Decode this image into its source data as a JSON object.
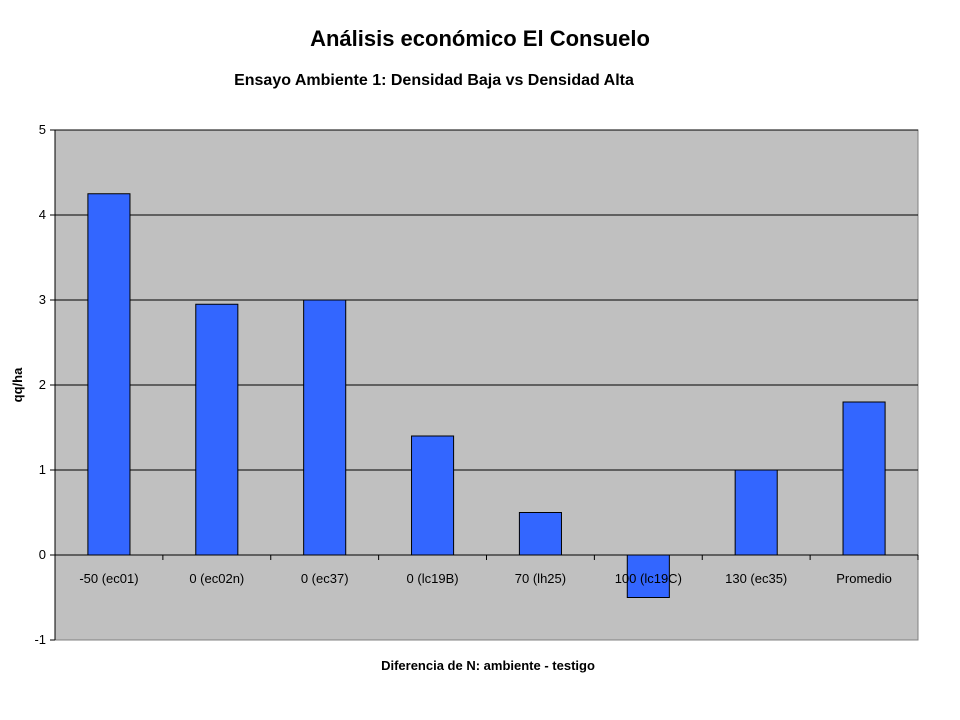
{
  "page": {
    "title": "Análisis económico El Consuelo"
  },
  "chart_data": {
    "type": "bar",
    "title": "Ensayo Ambiente 1: Densidad Baja vs Densidad Alta",
    "xlabel": "Diferencia de N: ambiente - testigo",
    "ylabel": "qq/ha",
    "categories": [
      "-50 (ec01)",
      "0 (ec02n)",
      "0 (ec37)",
      "0 (lc19B)",
      "70 (lh25)",
      "100 (lc19C)",
      "130 (ec35)",
      "Promedio"
    ],
    "series": [
      {
        "values": [
          4.25,
          2.95,
          3.0,
          1.4,
          0.5,
          -0.5,
          1.0,
          1.8
        ]
      }
    ],
    "ylim": [
      -1,
      5
    ],
    "yticks": [
      -1,
      0,
      1,
      2,
      3,
      4,
      5
    ],
    "grid": true,
    "legend": "none",
    "colors": {
      "bar": "#3366ff",
      "plot_background": "#c0c0c0",
      "gridline": "#000000"
    }
  }
}
